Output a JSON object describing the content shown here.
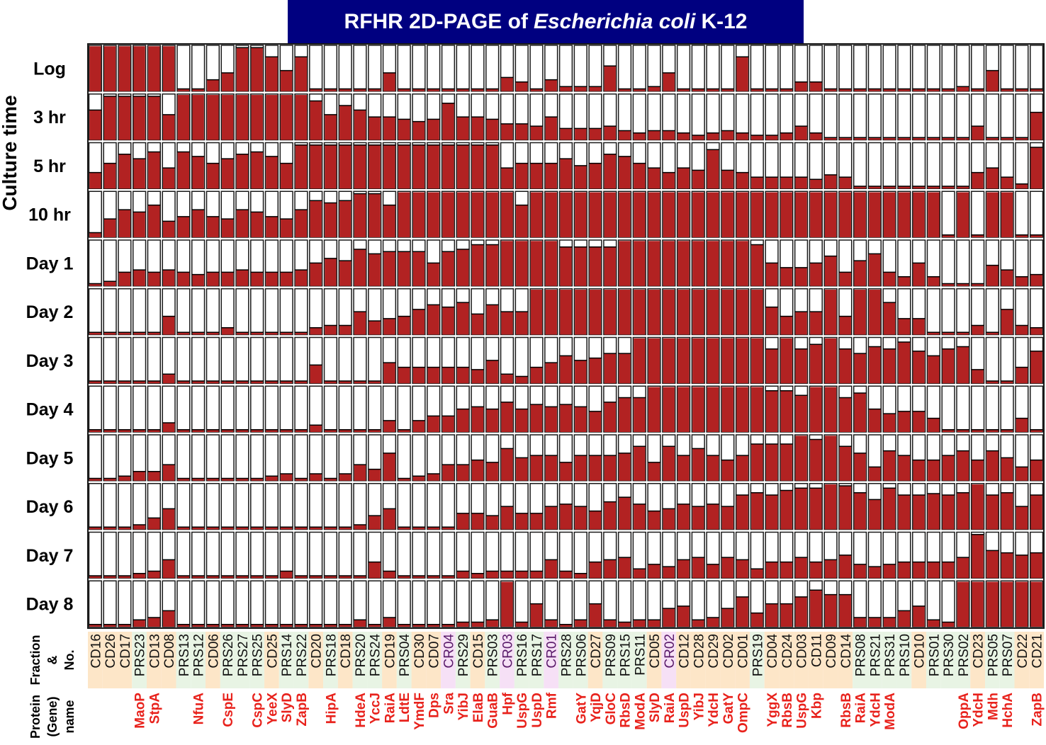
{
  "title": {
    "prefix": "RFHR 2D-PAGE of",
    "italic": "Escherichia coli",
    "suffix": "K-12"
  },
  "row_axis_label": "Culture time",
  "footer": {
    "fraction_label_lines": [
      "Fraction",
      "&",
      "No."
    ],
    "protein_label_lines": [
      "Protein",
      "(Gene)",
      "name"
    ]
  },
  "colors": {
    "title_bg": "#000080",
    "bar": "#b22222",
    "bar_border": "#000000",
    "label_red": "#e8221c",
    "label_black": "#111111",
    "label_purple": "#5a1a6a",
    "cell_border": "#1a1a1a",
    "bg_orange": "#fde6c8",
    "bg_green": "#e8f4e4",
    "bg_pink": "#f6e0f6"
  },
  "chart_data": {
    "type": "heatmap",
    "value_meaning": "filled bar height as fraction of cell (0-1)",
    "rows": [
      "Log",
      "3 hr",
      "5 hr",
      "10 hr",
      "Day 1",
      "Day 2",
      "Day 3",
      "Day 4",
      "Day 5",
      "Day 6",
      "Day 7",
      "Day 8"
    ],
    "columns": [
      {
        "fraction": "CD16",
        "protein": "",
        "bg": "orange"
      },
      {
        "fraction": "CD26",
        "protein": "",
        "bg": "orange"
      },
      {
        "fraction": "CD17",
        "protein": "",
        "bg": "orange"
      },
      {
        "fraction": "PRS23",
        "protein": "MaoP",
        "bg": "green"
      },
      {
        "fraction": "CD13",
        "protein": "StpA",
        "bg": "orange"
      },
      {
        "fraction": "CD08",
        "protein": "",
        "bg": "orange"
      },
      {
        "fraction": "PRS13",
        "protein": "",
        "bg": "green"
      },
      {
        "fraction": "PRS12",
        "protein": "NfuA",
        "bg": "green"
      },
      {
        "fraction": "CD06",
        "protein": "",
        "bg": "orange"
      },
      {
        "fraction": "PRS26",
        "protein": "CspE",
        "bg": "green"
      },
      {
        "fraction": "PRS27",
        "protein": "",
        "bg": "green"
      },
      {
        "fraction": "PRS25",
        "protein": "CspC",
        "bg": "green"
      },
      {
        "fraction": "CD25",
        "protein": "YeeX",
        "bg": "orange"
      },
      {
        "fraction": "PRS14",
        "protein": "SlyD",
        "bg": "green"
      },
      {
        "fraction": "PRS22",
        "protein": "ZapB",
        "bg": "green"
      },
      {
        "fraction": "CD20",
        "protein": "",
        "bg": "orange"
      },
      {
        "fraction": "PRS18",
        "protein": "HipA",
        "bg": "green"
      },
      {
        "fraction": "CD18",
        "protein": "",
        "bg": "orange"
      },
      {
        "fraction": "PRS20",
        "protein": "HdeA",
        "bg": "green"
      },
      {
        "fraction": "PRS24",
        "protein": "YccJ",
        "bg": "green"
      },
      {
        "fraction": "CD19",
        "protein": "RaiA",
        "bg": "orange"
      },
      {
        "fraction": "PRS04",
        "protein": "LdtE",
        "bg": "green"
      },
      {
        "fraction": "CD30",
        "protein": "YmdF",
        "bg": "orange"
      },
      {
        "fraction": "CD07",
        "protein": "Dps",
        "bg": "orange"
      },
      {
        "fraction": "CR04",
        "protein": "Sra",
        "bg": "pink"
      },
      {
        "fraction": "PRS29",
        "protein": "YibJ",
        "bg": "green"
      },
      {
        "fraction": "CD15",
        "protein": "ElaB",
        "bg": "orange"
      },
      {
        "fraction": "PRS03",
        "protein": "GuaB",
        "bg": "green"
      },
      {
        "fraction": "CR03",
        "protein": "Hpf",
        "bg": "pink"
      },
      {
        "fraction": "PRS16",
        "protein": "UspG",
        "bg": "green"
      },
      {
        "fraction": "PRS17",
        "protein": "UspD",
        "bg": "green"
      },
      {
        "fraction": "CR01",
        "protein": "Rmf",
        "bg": "pink"
      },
      {
        "fraction": "PRS28",
        "protein": "",
        "bg": "green"
      },
      {
        "fraction": "PRS06",
        "protein": "GatY",
        "bg": "green"
      },
      {
        "fraction": "CD27",
        "protein": "YqjD",
        "bg": "orange"
      },
      {
        "fraction": "PRS09",
        "protein": "GloC",
        "bg": "green"
      },
      {
        "fraction": "PRS15",
        "protein": "RbsD",
        "bg": "green"
      },
      {
        "fraction": "PRS11",
        "protein": "ModA",
        "bg": "green"
      },
      {
        "fraction": "CD05",
        "protein": "SlyD",
        "bg": "orange"
      },
      {
        "fraction": "CR02",
        "protein": "RaiA",
        "bg": "pink"
      },
      {
        "fraction": "CD12",
        "protein": "UspD",
        "bg": "orange"
      },
      {
        "fraction": "CD28",
        "protein": "YibJ",
        "bg": "orange"
      },
      {
        "fraction": "CD29",
        "protein": "YdcH",
        "bg": "orange"
      },
      {
        "fraction": "CD02",
        "protein": "GatY",
        "bg": "orange"
      },
      {
        "fraction": "CD01",
        "protein": "OmpC",
        "bg": "orange"
      },
      {
        "fraction": "PRS19",
        "protein": "",
        "bg": "green"
      },
      {
        "fraction": "CD04",
        "protein": "YggX",
        "bg": "orange"
      },
      {
        "fraction": "CD24",
        "protein": "RbsB",
        "bg": "orange"
      },
      {
        "fraction": "CD03",
        "protein": "UspG",
        "bg": "orange"
      },
      {
        "fraction": "CD11",
        "protein": "Kbp",
        "bg": "orange"
      },
      {
        "fraction": "CD09",
        "protein": "",
        "bg": "orange"
      },
      {
        "fraction": "CD14",
        "protein": "RbsB",
        "bg": "orange"
      },
      {
        "fraction": "PRS08",
        "protein": "RaiA",
        "bg": "green"
      },
      {
        "fraction": "PRS21",
        "protein": "YdcH",
        "bg": "green"
      },
      {
        "fraction": "PRS31",
        "protein": "ModA",
        "bg": "green"
      },
      {
        "fraction": "PRS10",
        "protein": "",
        "bg": "green"
      },
      {
        "fraction": "CD10",
        "protein": "",
        "bg": "orange"
      },
      {
        "fraction": "PRS01",
        "protein": "",
        "bg": "green"
      },
      {
        "fraction": "PRS30",
        "protein": "",
        "bg": "green"
      },
      {
        "fraction": "PRS02",
        "protein": "OppA",
        "bg": "green"
      },
      {
        "fraction": "CD23",
        "protein": "YdcH",
        "bg": "orange"
      },
      {
        "fraction": "PRS05",
        "protein": "Mdh",
        "bg": "green"
      },
      {
        "fraction": "PRS07",
        "protein": "HchA",
        "bg": "green"
      },
      {
        "fraction": "CD22",
        "protein": "",
        "bg": "orange"
      },
      {
        "fraction": "CD21",
        "protein": "ZapB",
        "bg": "orange"
      }
    ],
    "values": [
      [
        0.98,
        0.98,
        0.98,
        0.98,
        0.98,
        0.98,
        0.05,
        0.05,
        0.25,
        0.4,
        0.95,
        0.95,
        0.75,
        0.45,
        0.75,
        0.05,
        0.05,
        0.05,
        0.05,
        0.05,
        0.4,
        0.05,
        0.05,
        0.05,
        0.05,
        0.05,
        0.05,
        0.05,
        0.3,
        0.2,
        0.05,
        0.25,
        0.1,
        0.1,
        0.1,
        0.55,
        0.05,
        0.05,
        0.1,
        0.4,
        0.05,
        0.05,
        0.05,
        0.05,
        0.75,
        0.05,
        0.05,
        0.05,
        0.2,
        0.2,
        0.05,
        0.05,
        0.05,
        0.05,
        0.05,
        0.05,
        0.05,
        0.05,
        0.05,
        0.1,
        0.05,
        0.45,
        0.05,
        0.05,
        0.05
      ],
      [
        0.65,
        0.95,
        0.95,
        0.95,
        0.95,
        0.55,
        0.98,
        0.98,
        0.98,
        0.98,
        0.98,
        0.98,
        0.98,
        0.98,
        0.98,
        0.85,
        0.55,
        0.75,
        0.65,
        0.5,
        0.5,
        0.45,
        0.4,
        0.45,
        0.8,
        0.5,
        0.5,
        0.45,
        0.35,
        0.35,
        0.3,
        0.5,
        0.25,
        0.25,
        0.25,
        0.3,
        0.2,
        0.15,
        0.2,
        0.2,
        0.15,
        0.1,
        0.15,
        0.2,
        0.15,
        0.1,
        0.1,
        0.15,
        0.3,
        0.15,
        0.05,
        0.05,
        0.05,
        0.05,
        0.05,
        0.05,
        0.05,
        0.05,
        0.05,
        0.05,
        0.3,
        0.05,
        0.05,
        0.05,
        0.6
      ],
      [
        0.35,
        0.55,
        0.75,
        0.65,
        0.8,
        0.45,
        0.8,
        0.7,
        0.55,
        0.65,
        0.75,
        0.8,
        0.7,
        0.55,
        0.95,
        0.95,
        0.95,
        0.95,
        0.95,
        0.95,
        0.95,
        0.95,
        0.95,
        0.95,
        0.95,
        0.95,
        0.95,
        0.95,
        0.45,
        0.55,
        0.55,
        0.55,
        0.65,
        0.5,
        0.55,
        0.75,
        0.7,
        0.55,
        0.45,
        0.35,
        0.45,
        0.4,
        0.85,
        0.4,
        0.35,
        0.25,
        0.25,
        0.25,
        0.25,
        0.2,
        0.3,
        0.25,
        0.05,
        0.05,
        0.05,
        0.05,
        0.05,
        0.05,
        0.05,
        0.05,
        0.35,
        0.45,
        0.25,
        0.1,
        0.9
      ],
      [
        0.1,
        0.4,
        0.6,
        0.55,
        0.7,
        0.35,
        0.45,
        0.6,
        0.45,
        0.4,
        0.6,
        0.55,
        0.45,
        0.4,
        0.6,
        0.8,
        0.75,
        0.8,
        0.95,
        0.95,
        0.7,
        0.98,
        0.98,
        0.98,
        0.98,
        0.98,
        0.98,
        0.98,
        0.98,
        0.7,
        0.98,
        0.98,
        0.98,
        0.98,
        0.98,
        0.98,
        0.98,
        0.98,
        0.98,
        0.98,
        0.98,
        0.98,
        0.98,
        0.98,
        0.98,
        0.98,
        0.98,
        0.98,
        0.98,
        0.98,
        0.98,
        0.98,
        0.98,
        0.98,
        0.98,
        0.98,
        0.98,
        0.98,
        0.05,
        0.98,
        0.05,
        0.98,
        0.98,
        0.05,
        0.05
      ],
      [
        0.05,
        0.1,
        0.3,
        0.35,
        0.3,
        0.35,
        0.3,
        0.25,
        0.3,
        0.3,
        0.35,
        0.3,
        0.3,
        0.3,
        0.35,
        0.5,
        0.6,
        0.55,
        0.8,
        0.7,
        0.75,
        0.75,
        0.75,
        0.5,
        0.75,
        0.8,
        0.9,
        0.9,
        0.98,
        0.98,
        0.98,
        0.98,
        0.85,
        0.85,
        0.85,
        0.85,
        0.98,
        0.98,
        0.98,
        0.98,
        0.98,
        0.98,
        0.98,
        0.98,
        0.98,
        0.9,
        0.5,
        0.4,
        0.4,
        0.5,
        0.65,
        0.3,
        0.55,
        0.7,
        0.3,
        0.2,
        0.5,
        0.2,
        0.05,
        0.05,
        0.05,
        0.45,
        0.35,
        0.2,
        0.25
      ],
      [
        0.05,
        0.05,
        0.05,
        0.05,
        0.05,
        0.4,
        0.05,
        0.05,
        0.05,
        0.15,
        0.05,
        0.05,
        0.05,
        0.05,
        0.05,
        0.15,
        0.2,
        0.2,
        0.5,
        0.3,
        0.35,
        0.4,
        0.55,
        0.65,
        0.6,
        0.7,
        0.45,
        0.65,
        0.5,
        0.5,
        0.98,
        0.98,
        0.98,
        0.98,
        0.98,
        0.98,
        0.98,
        0.98,
        0.98,
        0.98,
        0.98,
        0.98,
        0.98,
        0.98,
        0.98,
        0.98,
        0.6,
        0.4,
        0.5,
        0.5,
        0.98,
        0.4,
        0.98,
        0.98,
        0.7,
        0.35,
        0.35,
        0.05,
        0.05,
        0.05,
        0.2,
        0.05,
        0.55,
        0.2,
        0.15
      ],
      [
        0.05,
        0.05,
        0.05,
        0.05,
        0.05,
        0.2,
        0.05,
        0.05,
        0.05,
        0.05,
        0.05,
        0.05,
        0.05,
        0.05,
        0.05,
        0.4,
        0.05,
        0.05,
        0.05,
        0.05,
        0.45,
        0.35,
        0.35,
        0.35,
        0.35,
        0.35,
        0.3,
        0.5,
        0.2,
        0.15,
        0.35,
        0.45,
        0.6,
        0.5,
        0.55,
        0.65,
        0.65,
        0.98,
        0.98,
        0.98,
        0.98,
        0.98,
        0.98,
        0.98,
        0.98,
        0.98,
        0.75,
        0.98,
        0.75,
        0.85,
        0.98,
        0.75,
        0.65,
        0.8,
        0.75,
        0.9,
        0.7,
        0.6,
        0.75,
        0.8,
        0.3,
        0.05,
        0.05,
        0.35,
        0.7
      ],
      [
        0.05,
        0.05,
        0.05,
        0.05,
        0.05,
        0.2,
        0.05,
        0.05,
        0.05,
        0.05,
        0.05,
        0.05,
        0.05,
        0.05,
        0.05,
        0.15,
        0.05,
        0.05,
        0.05,
        0.05,
        0.25,
        0.05,
        0.25,
        0.35,
        0.35,
        0.5,
        0.55,
        0.5,
        0.65,
        0.5,
        0.6,
        0.55,
        0.6,
        0.55,
        0.45,
        0.65,
        0.75,
        0.75,
        0.98,
        0.98,
        0.98,
        0.98,
        0.98,
        0.98,
        0.98,
        0.98,
        0.9,
        0.9,
        0.8,
        0.98,
        0.98,
        0.75,
        0.85,
        0.5,
        0.4,
        0.45,
        0.45,
        0.3,
        0.05,
        0.05,
        0.05,
        0.05,
        0.05,
        0.3,
        0.05
      ],
      [
        0.05,
        0.05,
        0.1,
        0.2,
        0.2,
        0.35,
        0.05,
        0.05,
        0.05,
        0.05,
        0.05,
        0.05,
        0.1,
        0.15,
        0.05,
        0.15,
        0.05,
        0.15,
        0.35,
        0.25,
        0.6,
        0.05,
        0.1,
        0.15,
        0.35,
        0.35,
        0.45,
        0.4,
        0.7,
        0.5,
        0.55,
        0.55,
        0.4,
        0.55,
        0.55,
        0.55,
        0.6,
        0.75,
        0.4,
        0.75,
        0.55,
        0.7,
        0.55,
        0.45,
        0.55,
        0.8,
        0.8,
        0.8,
        0.98,
        0.9,
        0.98,
        0.75,
        0.6,
        0.3,
        0.65,
        0.55,
        0.45,
        0.45,
        0.55,
        0.65,
        0.45,
        0.65,
        0.5,
        0.3,
        0.45
      ],
      [
        0.05,
        0.05,
        0.05,
        0.1,
        0.25,
        0.45,
        0.05,
        0.05,
        0.05,
        0.05,
        0.05,
        0.05,
        0.05,
        0.05,
        0.05,
        0.05,
        0.05,
        0.05,
        0.1,
        0.3,
        0.45,
        0.05,
        0.05,
        0.05,
        0.05,
        0.35,
        0.35,
        0.3,
        0.5,
        0.35,
        0.35,
        0.5,
        0.55,
        0.5,
        0.4,
        0.6,
        0.7,
        0.55,
        0.4,
        0.45,
        0.55,
        0.5,
        0.55,
        0.5,
        0.75,
        0.8,
        0.75,
        0.85,
        0.9,
        0.9,
        0.98,
        0.95,
        0.8,
        0.65,
        0.9,
        0.75,
        0.75,
        0.78,
        0.75,
        0.8,
        0.98,
        0.75,
        0.8,
        0.5,
        0.75
      ],
      [
        0.05,
        0.05,
        0.05,
        0.1,
        0.15,
        0.4,
        0.05,
        0.05,
        0.05,
        0.05,
        0.05,
        0.05,
        0.05,
        0.15,
        0.05,
        0.05,
        0.05,
        0.05,
        0.05,
        0.35,
        0.15,
        0.05,
        0.05,
        0.05,
        0.05,
        0.15,
        0.1,
        0.15,
        0.15,
        0.15,
        0.15,
        0.4,
        0.15,
        0.1,
        0.35,
        0.4,
        0.45,
        0.2,
        0.3,
        0.25,
        0.4,
        0.45,
        0.3,
        0.45,
        0.4,
        0.2,
        0.35,
        0.35,
        0.45,
        0.35,
        0.4,
        0.5,
        0.3,
        0.25,
        0.3,
        0.35,
        0.35,
        0.35,
        0.35,
        0.45,
        0.95,
        0.6,
        0.55,
        0.5,
        0.55
      ],
      [
        0.05,
        0.05,
        0.05,
        0.15,
        0.2,
        0.35,
        0.05,
        0.05,
        0.05,
        0.05,
        0.05,
        0.05,
        0.05,
        0.05,
        0.05,
        0.05,
        0.05,
        0.05,
        0.15,
        0.05,
        0.2,
        0.05,
        0.05,
        0.05,
        0.05,
        0.1,
        0.1,
        0.15,
        0.98,
        0.1,
        0.5,
        0.15,
        0.05,
        0.15,
        0.5,
        0.15,
        0.1,
        0.15,
        0.15,
        0.4,
        0.45,
        0.15,
        0.2,
        0.4,
        0.65,
        0.3,
        0.5,
        0.5,
        0.65,
        0.8,
        0.7,
        0.7,
        0.2,
        0.2,
        0.2,
        0.35,
        0.45,
        0.15,
        0.1,
        0.98,
        0.98,
        0.98,
        0.98,
        0.98,
        0.98
      ]
    ]
  }
}
